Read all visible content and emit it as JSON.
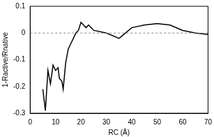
{
  "chart_data": {
    "type": "line",
    "x_label": "RC (Å)",
    "y_label": "1-Ractive/Rnative",
    "x": [
      5,
      6,
      7,
      8,
      9,
      10,
      11,
      11.5,
      12.5,
      13,
      14,
      15,
      16,
      17,
      18,
      19,
      20,
      21,
      22,
      23,
      24,
      25,
      30,
      35,
      40,
      45,
      50,
      55,
      60,
      65,
      70
    ],
    "values": [
      -0.21,
      -0.29,
      -0.14,
      -0.19,
      -0.12,
      -0.14,
      -0.13,
      -0.17,
      -0.18,
      -0.21,
      -0.11,
      -0.06,
      -0.04,
      -0.02,
      0.0,
      0.01,
      0.04,
      0.03,
      0.02,
      0.03,
      0.02,
      0.01,
      0.0,
      -0.02,
      0.02,
      0.03,
      0.035,
      0.03,
      0.01,
      0.0,
      -0.005
    ],
    "color": "#000000",
    "reference_line": 0,
    "reference_line_style": "dashed",
    "xlim": [
      0,
      70
    ],
    "xticks": [
      0,
      10,
      20,
      30,
      40,
      50,
      60,
      70
    ],
    "ylim": [
      -0.3,
      0.1
    ],
    "yticks": [
      -0.3,
      -0.2,
      -0.1,
      0,
      0.1
    ],
    "grid": false
  }
}
